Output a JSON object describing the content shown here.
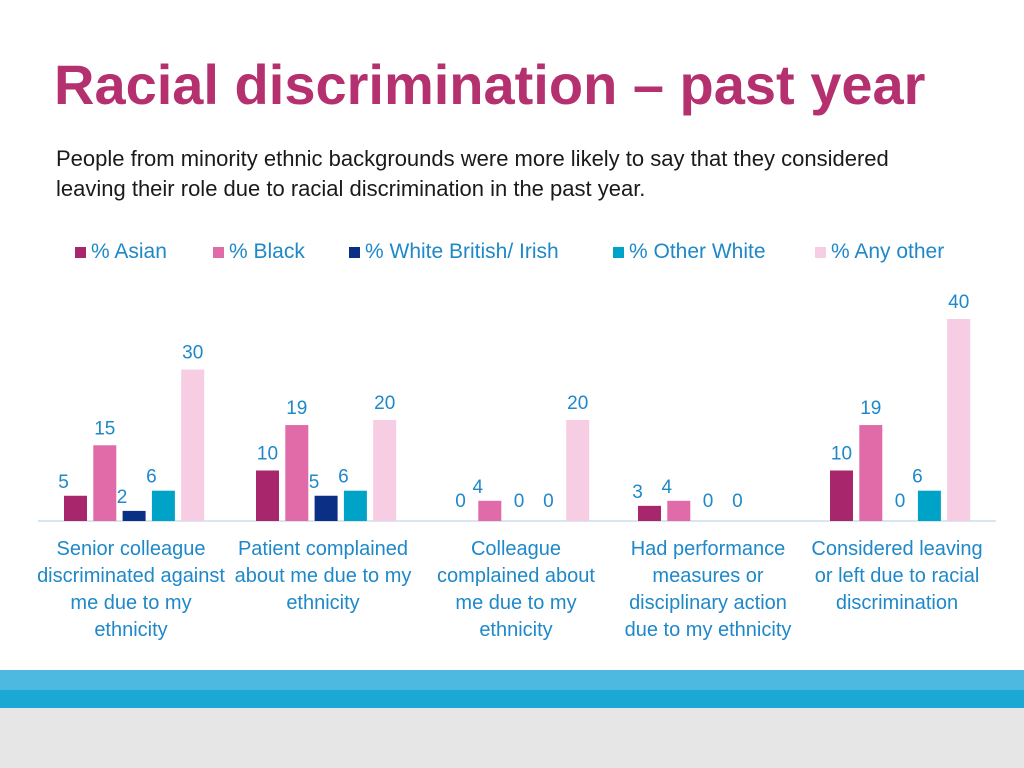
{
  "title": "Racial discrimination – past year",
  "subtitle": "People from minority ethnic backgrounds were more likely to say that they considered leaving their role due to racial discrimination in the past year.",
  "colors": {
    "asian": "#a8266b",
    "black": "#e06ba8",
    "white_british_irish": "#0c2f86",
    "other_white": "#00a3c8",
    "any_other": "#f6cde2",
    "title": "#b5306f",
    "label": "#1e88c9"
  },
  "chart_data": {
    "type": "bar",
    "title": "",
    "xlabel": "",
    "ylabel": "",
    "ylim": [
      0,
      40
    ],
    "legend_position": "top",
    "categories": [
      "Senior colleague discriminated against me due to my ethnicity",
      "Patient complained about me due to my ethnicity",
      "Colleague complained about me due to my ethnicity",
      "Had performance measures or disciplinary action due to my ethnicity",
      "Considered leaving or left due to racial discrimination"
    ],
    "series": [
      {
        "name": "% Asian",
        "values": [
          5,
          10,
          0,
          3,
          10
        ]
      },
      {
        "name": "% Black",
        "values": [
          15,
          19,
          4,
          4,
          19
        ]
      },
      {
        "name": "% White British/ Irish",
        "values": [
          2,
          5,
          0,
          0,
          0
        ]
      },
      {
        "name": "% Other White",
        "values": [
          6,
          6,
          0,
          0,
          6
        ]
      },
      {
        "name": "% Any other",
        "values": [
          30,
          20,
          20,
          0,
          40
        ]
      }
    ]
  }
}
